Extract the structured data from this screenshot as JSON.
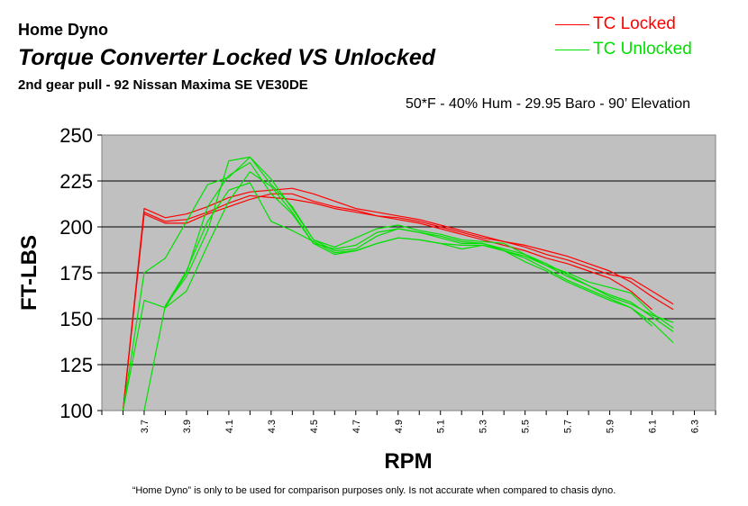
{
  "header": {
    "title": "Home Dyno",
    "subtitle": "Torque Converter Locked VS Unlocked",
    "description": "2nd gear pull - 92 Nissan Maxima SE VE30DE",
    "conditions": "50*F - 40% Hum - 29.95 Baro - 90’ Elevation"
  },
  "footnote": "“Home Dyno” is only to be used for comparison purposes only. Is not accurate when compared to chasis dyno.",
  "legend": [
    {
      "label": "TC Locked",
      "color": "#ff0000"
    },
    {
      "label": "TC Unlocked",
      "color": "#00e000"
    }
  ],
  "chart_data": {
    "type": "line",
    "xlabel": "RPM",
    "ylabel": "FT-LBS",
    "xlim": [
      3.5,
      6.4
    ],
    "ylim": [
      100,
      250
    ],
    "yticks": [
      "100",
      "125",
      "150",
      "175",
      "200",
      "225",
      "250"
    ],
    "xticks": [
      "3.7",
      "3.9",
      "4.1",
      "4.3",
      "4.5",
      "4.7",
      "4.9",
      "5.1",
      "5.3",
      "5.5",
      "5.7",
      "5.9",
      "6.1",
      "6.3"
    ],
    "plot_background": "#c0c0c0",
    "grid": "horizontal",
    "legend_position": "top-right",
    "x": [
      3.6,
      3.7,
      3.8,
      3.9,
      4.0,
      4.1,
      4.2,
      4.3,
      4.4,
      4.5,
      4.6,
      4.7,
      4.8,
      4.9,
      5.0,
      5.1,
      5.2,
      5.3,
      5.4,
      5.5,
      5.6,
      5.7,
      5.8,
      5.9,
      6.0,
      6.1,
      6.2
    ],
    "series": [
      {
        "group": "TC Locked",
        "color": "#ff0000",
        "values": [
          100,
          210,
          205,
          207,
          211,
          216,
          219,
          220,
          221,
          218,
          214,
          210,
          208,
          206,
          204,
          201,
          198,
          195,
          192,
          190,
          187,
          184,
          180,
          176,
          170,
          162,
          155
        ]
      },
      {
        "group": "TC Locked",
        "color": "#ff0000",
        "values": [
          100,
          207,
          202,
          202,
          207,
          211,
          215,
          218,
          218,
          214,
          211,
          209,
          206,
          204,
          202,
          199,
          196,
          193,
          190,
          187,
          183,
          180,
          176,
          172,
          165,
          155,
          null
        ]
      },
      {
        "group": "TC Locked",
        "color": "#ff0000",
        "values": [
          100,
          208,
          203,
          204,
          208,
          213,
          217,
          216,
          215,
          213,
          210,
          208,
          206,
          205,
          203,
          200,
          197,
          194,
          192,
          189,
          185,
          182,
          178,
          174,
          172,
          165,
          158
        ]
      },
      {
        "group": "TC Unlocked",
        "color": "#00e000",
        "values": [
          100,
          175,
          183,
          203,
          223,
          227,
          238,
          226,
          210,
          193,
          187,
          188,
          195,
          199,
          197,
          194,
          191,
          191,
          187,
          183,
          177,
          171,
          166,
          161,
          156,
          146,
          null
        ]
      },
      {
        "group": "TC Unlocked",
        "color": "#00e000",
        "values": [
          100,
          160,
          156,
          165,
          190,
          214,
          230,
          222,
          208,
          191,
          185,
          187,
          191,
          194,
          193,
          191,
          188,
          190,
          187,
          181,
          176,
          170,
          165,
          160,
          156,
          148,
          137
        ]
      },
      {
        "group": "TC Unlocked",
        "color": "#00e000",
        "values": [
          null,
          100,
          157,
          173,
          198,
          236,
          238,
          223,
          211,
          193,
          189,
          194,
          199,
          201,
          198,
          196,
          193,
          192,
          191,
          185,
          179,
          175,
          170,
          167,
          164,
          153,
          145
        ]
      },
      {
        "group": "TC Unlocked",
        "color": "#00e000",
        "values": [
          null,
          null,
          156,
          175,
          211,
          228,
          235,
          218,
          207,
          191,
          188,
          190,
          197,
          199,
          197,
          195,
          192,
          191,
          188,
          185,
          180,
          174,
          168,
          162,
          158,
          152,
          148
        ]
      },
      {
        "group": "TC Unlocked",
        "color": "#00e000",
        "values": [
          null,
          null,
          157,
          176,
          203,
          220,
          224,
          203,
          198,
          192,
          186,
          187,
          191,
          194,
          193,
          191,
          190,
          190,
          187,
          184,
          179,
          173,
          168,
          163,
          159,
          151,
          143
        ]
      }
    ]
  }
}
